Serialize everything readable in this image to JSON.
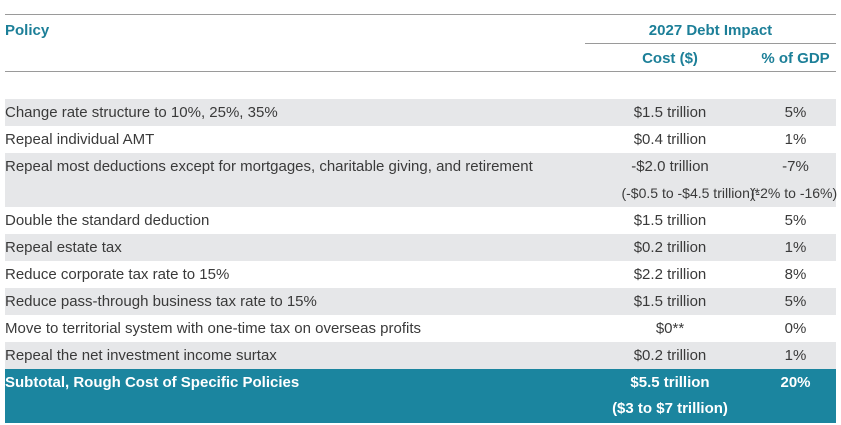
{
  "header": {
    "policy": "Policy",
    "group": "2027 Debt Impact",
    "cost": "Cost ($)",
    "gdp": "% of GDP"
  },
  "rows": [
    {
      "policy": "Change rate structure to 10%, 25%, 35%",
      "cost": "$1.5 trillion",
      "gdp": "5%"
    },
    {
      "policy": "Repeal individual AMT",
      "cost": "$0.4 trillion",
      "gdp": "1%"
    },
    {
      "policy": "Repeal most deductions except for mortgages, charitable giving, and retirement",
      "cost": "-$2.0 trillion",
      "gdp": "-7%"
    },
    {
      "policy": "",
      "cost": "(-$0.5 to -$4.5 trillion)*",
      "gdp": "(-2% to -16%)"
    },
    {
      "policy": "Double the standard deduction",
      "cost": "$1.5 trillion",
      "gdp": "5%"
    },
    {
      "policy": "Repeal estate tax",
      "cost": "$0.2 trillion",
      "gdp": "1%"
    },
    {
      "policy": "Reduce corporate tax rate to 15%",
      "cost": "$2.2 trillion",
      "gdp": "8%"
    },
    {
      "policy": "Reduce pass-through business tax rate to 15%",
      "cost": "$1.5 trillion",
      "gdp": "5%"
    },
    {
      "policy": "Move to territorial system with one-time tax on overseas profits",
      "cost": "$0**",
      "gdp": "0%"
    },
    {
      "policy": "Repeal the net investment income surtax",
      "cost": "$0.2 trillion",
      "gdp": "1%"
    }
  ],
  "subtotal": {
    "policy": "Subtotal, Rough Cost of Specific Policies",
    "cost": "$5.5 trillion",
    "gdp": "20%",
    "range": "($3 to $7 trillion)"
  },
  "colors": {
    "accent": "#1c7f98",
    "subtotal_bg": "#1b859f",
    "shade": "#e6e7e9"
  }
}
